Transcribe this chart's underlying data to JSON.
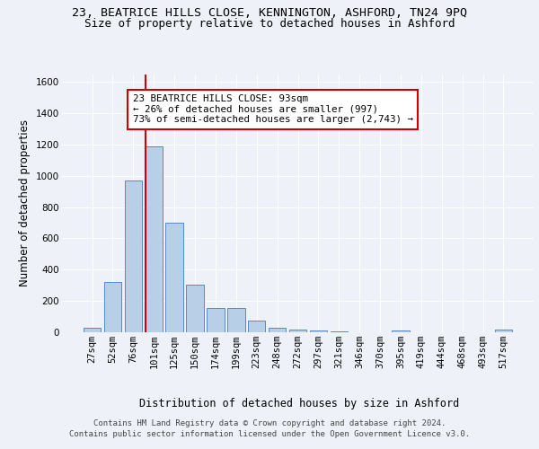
{
  "title1": "23, BEATRICE HILLS CLOSE, KENNINGTON, ASHFORD, TN24 9PQ",
  "title2": "Size of property relative to detached houses in Ashford",
  "xlabel": "Distribution of detached houses by size in Ashford",
  "ylabel": "Number of detached properties",
  "categories": [
    "27sqm",
    "52sqm",
    "76sqm",
    "101sqm",
    "125sqm",
    "150sqm",
    "174sqm",
    "199sqm",
    "223sqm",
    "248sqm",
    "272sqm",
    "297sqm",
    "321sqm",
    "346sqm",
    "370sqm",
    "395sqm",
    "419sqm",
    "444sqm",
    "468sqm",
    "493sqm",
    "517sqm"
  ],
  "values": [
    30,
    320,
    970,
    1190,
    700,
    305,
    155,
    155,
    75,
    30,
    15,
    10,
    5,
    0,
    0,
    10,
    0,
    0,
    0,
    0,
    20
  ],
  "bar_color": "#b8cfe8",
  "bar_edge_color": "#5588cc",
  "vline_color": "#cc0000",
  "vline_x_index": 3,
  "annotation_text": "23 BEATRICE HILLS CLOSE: 93sqm\n← 26% of detached houses are smaller (997)\n73% of semi-detached houses are larger (2,743) →",
  "annotation_box_facecolor": "#ffffff",
  "annotation_box_edgecolor": "#cc0000",
  "ylim": [
    0,
    1650
  ],
  "yticks": [
    0,
    200,
    400,
    600,
    800,
    1000,
    1200,
    1400,
    1600
  ],
  "footer1": "Contains HM Land Registry data © Crown copyright and database right 2024.",
  "footer2": "Contains public sector information licensed under the Open Government Licence v3.0.",
  "bg_color": "#eef2f8",
  "grid_color": "#ffffff",
  "title1_fontsize": 9.5,
  "title2_fontsize": 9.0,
  "axis_label_fontsize": 8.5,
  "tick_fontsize": 7.5,
  "annot_fontsize": 7.8,
  "footer_fontsize": 6.5
}
